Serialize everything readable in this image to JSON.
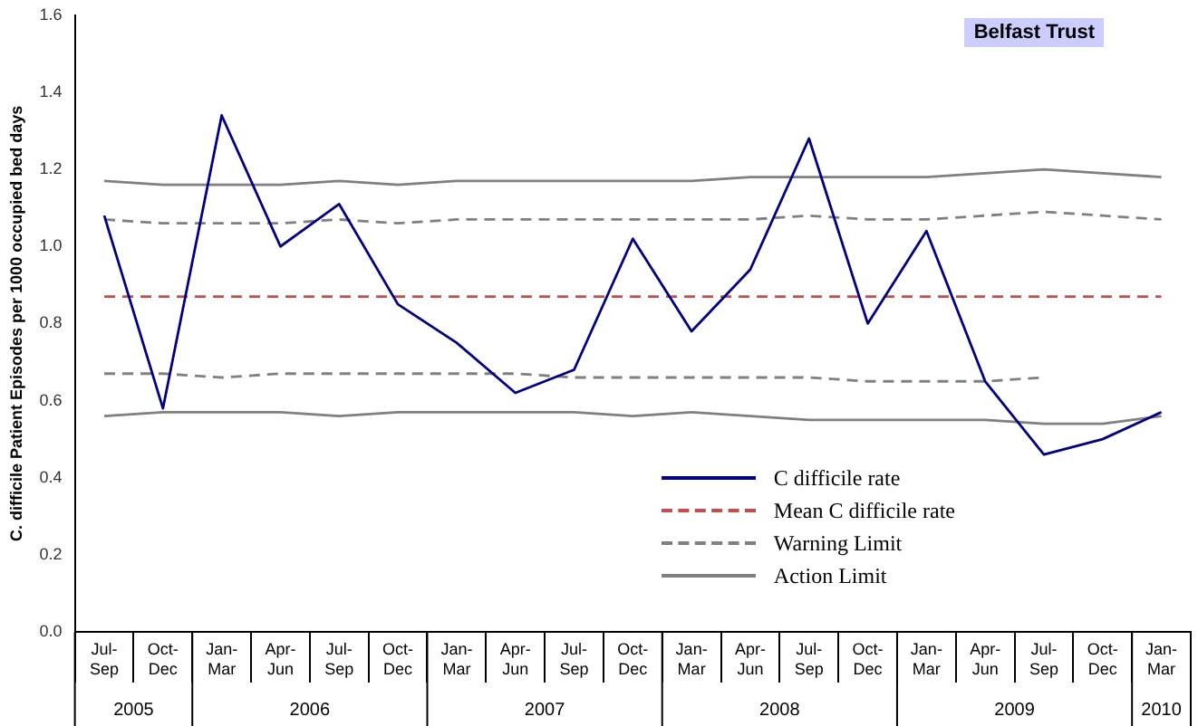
{
  "chart_data": {
    "type": "line",
    "ylabel": "C. difficile Patient Episodes per 1000 occupied bed days",
    "categories": [
      "Jul-Sep",
      "Oct-Dec",
      "Jan-Mar",
      "Apr-Jun",
      "Jul-Sep",
      "Oct-Dec",
      "Jan-Mar",
      "Apr-Jun",
      "Jul-Sep",
      "Oct-Dec",
      "Jan-Mar",
      "Apr-Jun",
      "Jul-Sep",
      "Oct-Dec",
      "Jan-Mar",
      "Apr-Jun",
      "Jul-Sep",
      "Oct-Dec",
      "Jan-Mar"
    ],
    "series": [
      {
        "name": "C difficile rate",
        "color": "#000080",
        "line_style": "solid",
        "values": [
          1.08,
          0.58,
          1.34,
          1.0,
          1.11,
          0.85,
          0.75,
          0.62,
          0.68,
          1.02,
          0.78,
          0.94,
          1.28,
          0.8,
          1.04,
          0.65,
          0.46,
          0.5,
          0.57
        ]
      },
      {
        "name": "Mean C difficile rate",
        "color": "#c0504d",
        "line_style": "dashed",
        "values": [
          0.87,
          0.87,
          0.87,
          0.87,
          0.87,
          0.87,
          0.87,
          0.87,
          0.87,
          0.87,
          0.87,
          0.87,
          0.87,
          0.87,
          0.87,
          0.87,
          0.87,
          0.87,
          0.87
        ]
      },
      {
        "name": "Warning Limit",
        "color": "#808080",
        "line_style": "dashed",
        "values": [
          1.07,
          1.06,
          1.06,
          1.06,
          1.07,
          1.06,
          1.07,
          1.07,
          1.07,
          1.07,
          1.07,
          1.07,
          1.08,
          1.07,
          1.07,
          1.08,
          1.09,
          1.08,
          1.07
        ]
      },
      {
        "color": "#808080",
        "line_style": "dashed",
        "values": [
          0.67,
          0.67,
          0.66,
          0.67,
          0.67,
          0.67,
          0.67,
          0.67,
          0.66,
          0.66,
          0.66,
          0.66,
          0.66,
          0.65,
          0.65,
          0.65,
          0.66,
          null,
          null
        ]
      },
      {
        "name": "Action Limit",
        "color": "#808080",
        "line_style": "solid",
        "values": [
          1.17,
          1.16,
          1.16,
          1.16,
          1.17,
          1.16,
          1.17,
          1.17,
          1.17,
          1.17,
          1.17,
          1.18,
          1.18,
          1.18,
          1.18,
          1.19,
          1.2,
          1.19,
          1.18
        ]
      },
      {
        "color": "#808080",
        "line_style": "solid",
        "values": [
          0.56,
          0.57,
          0.57,
          0.57,
          0.56,
          0.57,
          0.57,
          0.57,
          0.57,
          0.56,
          0.57,
          0.56,
          0.55,
          0.55,
          0.55,
          0.55,
          0.54,
          0.54,
          0.56
        ]
      }
    ],
    "ylim": [
      0,
      1.6
    ],
    "yticks": [
      {
        "value": 0,
        "label": "0.0"
      },
      0.2,
      0.4,
      0.6,
      0.8,
      {
        "value": 1,
        "label": "1.0"
      },
      1.2,
      1.4,
      1.6
    ],
    "grid": false,
    "legend": "bottom right",
    "marker": "none",
    "annotations": [
      "Belfast Trust",
      "2005",
      "2006",
      "2007",
      "2008",
      "2009",
      "2010"
    ]
  }
}
